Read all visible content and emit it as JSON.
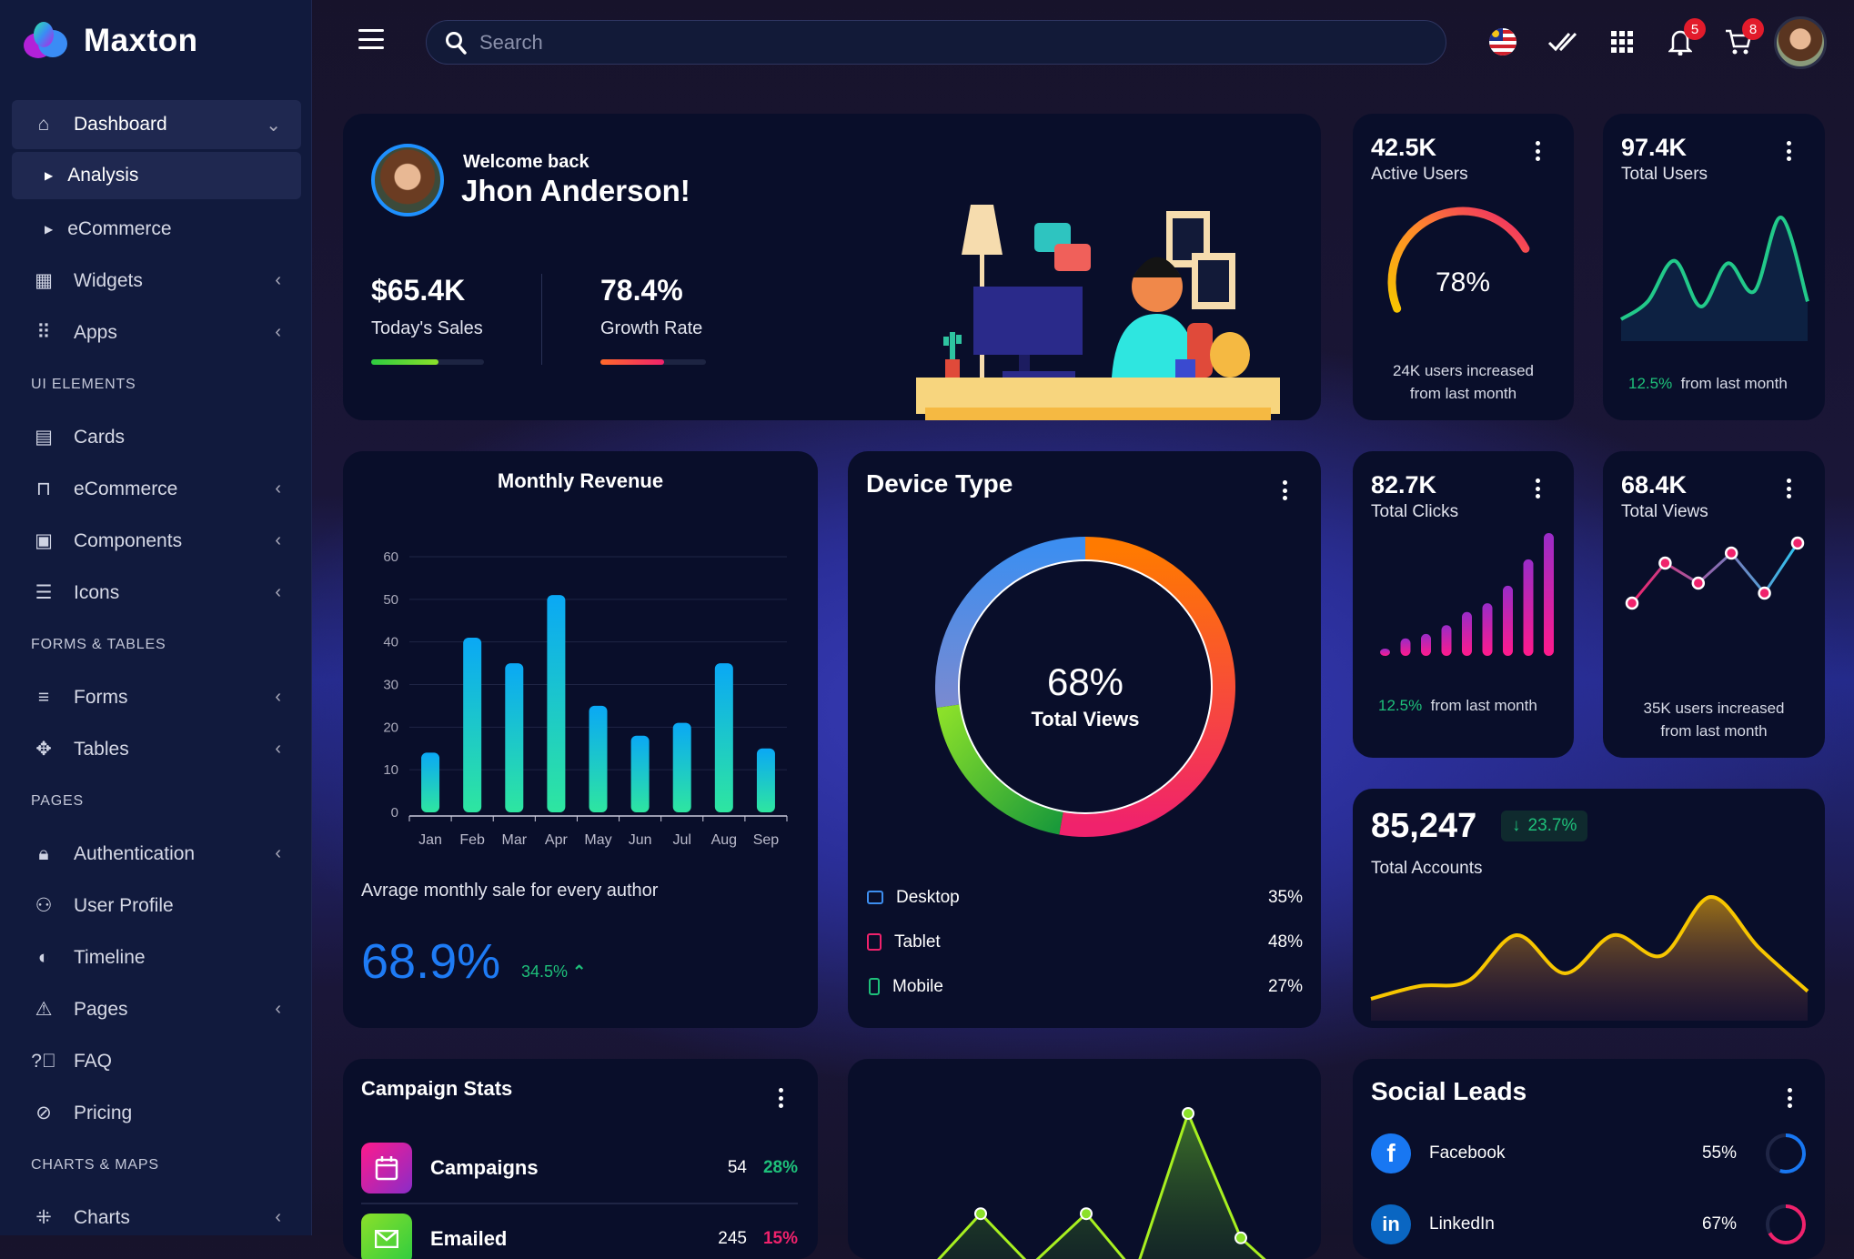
{
  "app": {
    "name": "Maxton"
  },
  "sidebar": {
    "dashboard": "Dashboard",
    "analysis": "Analysis",
    "ecommerce_sub": "eCommerce",
    "widgets": "Widgets",
    "apps": "Apps",
    "sec_ui": "UI ELEMENTS",
    "cards": "Cards",
    "ecommerce": "eCommerce",
    "components": "Components",
    "icons": "Icons",
    "sec_forms": "FORMS & TABLES",
    "forms": "Forms",
    "tables": "Tables",
    "sec_pages": "PAGES",
    "authentication": "Authentication",
    "user_profile": "User Profile",
    "timeline": "Timeline",
    "pages": "Pages",
    "faq": "FAQ",
    "pricing": "Pricing",
    "sec_charts": "CHARTS & MAPS",
    "charts": "Charts"
  },
  "topbar": {
    "search_placeholder": "Search",
    "notifications": "5",
    "cart": "8"
  },
  "welcome": {
    "greeting": "Welcome back",
    "name": "Jhon Anderson!",
    "sales_value": "$65.4K",
    "sales_label": "Today's Sales",
    "sales_progress": 0.6,
    "growth_value": "78.4%",
    "growth_label": "Growth Rate",
    "growth_progress": 0.6
  },
  "active_users": {
    "value": "42.5K",
    "label": "Active Users",
    "gauge_percent": 78,
    "gauge_text": "78%",
    "note1": "24K users increased",
    "note2": "from last month"
  },
  "total_users": {
    "value": "97.4K",
    "label": "Total Users",
    "change": "12.5%",
    "change_text": "from last month",
    "spark": [
      5,
      12,
      28,
      10,
      27,
      16,
      45,
      12
    ]
  },
  "monthly_revenue": {
    "title": "Monthly Revenue",
    "subtitle": "Avrage monthly sale for every author",
    "big": "68.9%",
    "change": "34.5%"
  },
  "device_type": {
    "title": "Device Type",
    "center_value": "68%",
    "center_label": "Total Views",
    "items": [
      {
        "label": "Desktop",
        "value": "35%",
        "color": "#3d8ef0"
      },
      {
        "label": "Tablet",
        "value": "48%",
        "color": "#f0226c"
      },
      {
        "label": "Mobile",
        "value": "27%",
        "color": "#1ec07a"
      }
    ]
  },
  "total_clicks": {
    "value": "82.7K",
    "label": "Total Clicks",
    "change": "12.5%",
    "change_text": "from last month",
    "bars": [
      1,
      4,
      5,
      7,
      10,
      12,
      16,
      22,
      28
    ]
  },
  "total_views": {
    "value": "68.4K",
    "label": "Total Views",
    "note1": "35K users increased",
    "note2": "from last month",
    "points": [
      3,
      7,
      5,
      8,
      4,
      9
    ]
  },
  "total_accounts": {
    "value": "85,247",
    "change": "23.7%",
    "label": "Total Accounts",
    "area": [
      5,
      10,
      12,
      30,
      15,
      30,
      22,
      45,
      25,
      8
    ]
  },
  "campaign_stats": {
    "title": "Campaign Stats",
    "rows": [
      {
        "label": "Campaigns",
        "count": "54",
        "pct": "28%",
        "pct_color": "#1ec07a"
      },
      {
        "label": "Emailed",
        "count": "245",
        "pct": "15%",
        "pct_color": "#f0226c"
      }
    ]
  },
  "line_card": {
    "values": [
      10,
      42,
      12,
      42,
      8,
      100,
      28,
      5
    ]
  },
  "social_leads": {
    "title": "Social Leads",
    "rows": [
      {
        "label": "Facebook",
        "pct": "55%",
        "value": 55,
        "color": "#1877f2"
      },
      {
        "label": "LinkedIn",
        "pct": "67%",
        "value": 67,
        "color": "#f0226c"
      }
    ]
  },
  "chart_data": {
    "type": "bar",
    "title": "Monthly Revenue",
    "categories": [
      "Jan",
      "Feb",
      "Mar",
      "Apr",
      "May",
      "Jun",
      "Jul",
      "Aug",
      "Sep"
    ],
    "values": [
      14,
      41,
      35,
      51,
      25,
      18,
      21,
      35,
      15
    ],
    "yticks": [
      "0",
      "10",
      "20",
      "30",
      "40",
      "50",
      "60"
    ],
    "ylim": [
      0,
      60
    ],
    "grid": true
  }
}
